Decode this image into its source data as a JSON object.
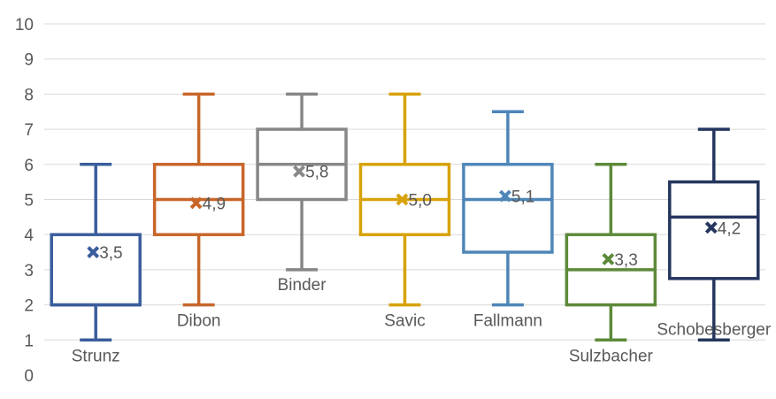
{
  "chart_data": {
    "type": "box",
    "title": "",
    "xlabel": "",
    "ylabel": "",
    "ylim": [
      0,
      10
    ],
    "yticks": [
      "0",
      "1",
      "2",
      "3",
      "4",
      "5",
      "6",
      "7",
      "8",
      "9",
      "10"
    ],
    "grid": "horizontal",
    "legend": "none",
    "series": [
      {
        "name": "Strunz",
        "min": 1,
        "q1": 2,
        "median": 2,
        "q3": 4,
        "max": 6,
        "mean": 3.5,
        "mean_label": "3,5",
        "color": "#3a5d9c"
      },
      {
        "name": "Dibon",
        "min": 2,
        "q1": 4,
        "median": 5,
        "q3": 6,
        "max": 8,
        "mean": 4.9,
        "mean_label": "4,9",
        "color": "#c7662a"
      },
      {
        "name": "Binder",
        "min": 3,
        "q1": 5,
        "median": 6,
        "q3": 7,
        "max": 8,
        "mean": 5.8,
        "mean_label": "5,8",
        "color": "#878787"
      },
      {
        "name": "Savic",
        "min": 2,
        "q1": 4,
        "median": 5,
        "q3": 6,
        "max": 8,
        "mean": 5.0,
        "mean_label": "5,0",
        "color": "#d7a20a"
      },
      {
        "name": "Fallmann",
        "min": 2,
        "q1": 3.5,
        "median": 5,
        "q3": 6,
        "max": 7.5,
        "mean": 5.1,
        "mean_label": "5,1",
        "color": "#4e86b8"
      },
      {
        "name": "Sulzbacher",
        "min": 1,
        "q1": 2,
        "median": 3,
        "q3": 4,
        "max": 6,
        "mean": 3.3,
        "mean_label": "3,3",
        "color": "#5d8a3a"
      },
      {
        "name": "Schobesberger",
        "min": 1,
        "q1": 2.75,
        "median": 4.5,
        "q3": 5.5,
        "max": 7,
        "mean": 4.2,
        "mean_label": "4,2",
        "color": "#25365e"
      }
    ]
  }
}
